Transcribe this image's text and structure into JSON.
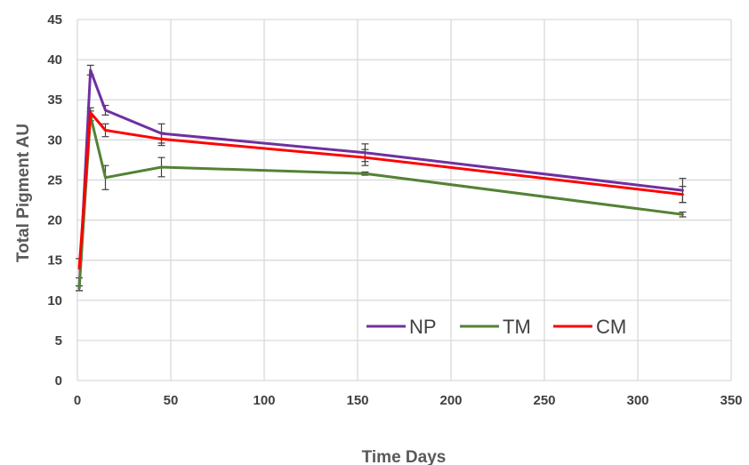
{
  "chart_data": {
    "type": "line",
    "xlabel": "Time Days",
    "ylabel": "Total Pigment AU",
    "xlim": [
      0,
      350
    ],
    "ylim": [
      0,
      45
    ],
    "xticks": [
      0,
      50,
      100,
      150,
      200,
      250,
      300,
      350
    ],
    "yticks": [
      0,
      5,
      10,
      15,
      20,
      25,
      30,
      35,
      40,
      45
    ],
    "grid": true,
    "legend_position": "bottom-right",
    "series": [
      {
        "name": "NP",
        "color": "#7030A0",
        "x": [
          1,
          7,
          15,
          45,
          154,
          324
        ],
        "y": [
          11.5,
          38.7,
          33.7,
          30.8,
          28.4,
          23.7
        ],
        "err": [
          0.3,
          0.6,
          0.6,
          1.2,
          1.1,
          1.5
        ]
      },
      {
        "name": "TM",
        "color": "#548235",
        "x": [
          1,
          7,
          15,
          45,
          154,
          324
        ],
        "y": [
          11.5,
          33.0,
          25.3,
          26.6,
          25.8,
          20.7
        ],
        "err": [
          0.3,
          0.6,
          1.5,
          1.2,
          0.2,
          0.3
        ]
      },
      {
        "name": "CM",
        "color": "#FF0000",
        "x": [
          1,
          7,
          15,
          45,
          154,
          324
        ],
        "y": [
          14.0,
          33.4,
          31.2,
          30.1,
          27.8,
          23.2
        ],
        "err": [
          1.2,
          0.6,
          0.8,
          0.8,
          1.0,
          1.0
        ]
      }
    ]
  }
}
